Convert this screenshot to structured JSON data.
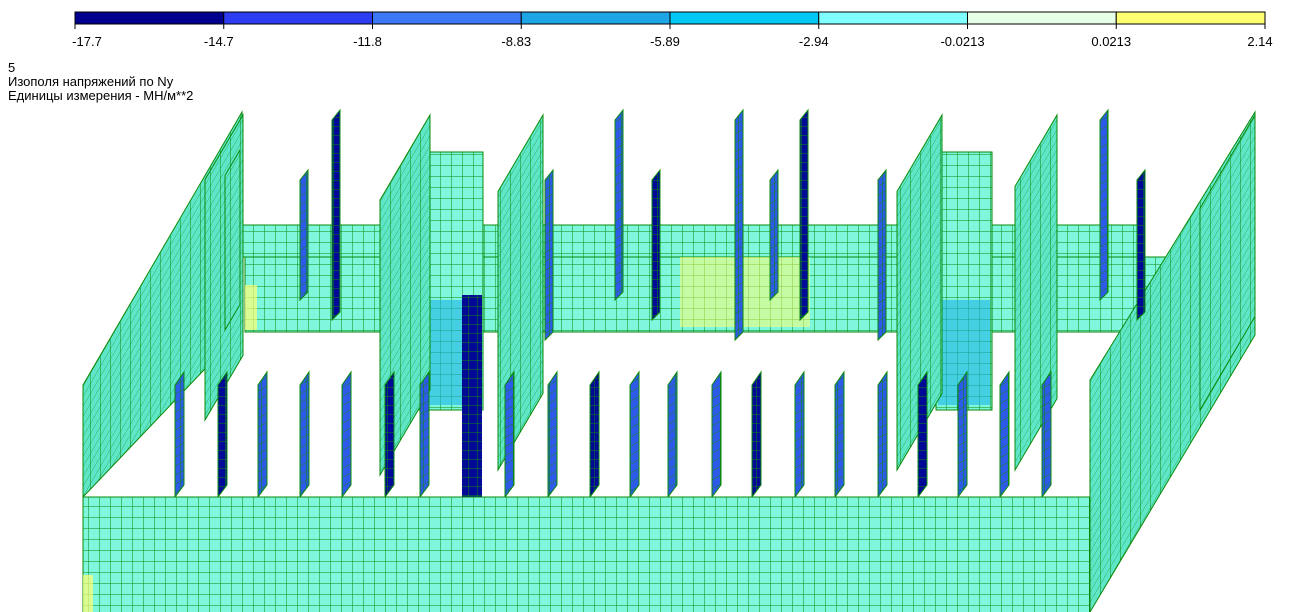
{
  "legend": {
    "ticks": [
      "-17.7",
      "-14.7",
      "-11.8",
      "-8.83",
      "-5.89",
      "-2.94",
      "-0.0213",
      "0.0213",
      "2.14"
    ],
    "colors": [
      "#00008c",
      "#2d3cf0",
      "#3c78f5",
      "#1ea5e6",
      "#00c8f5",
      "#80ffff",
      "#e6ffe6",
      "#ffff73"
    ]
  },
  "caption": {
    "number": "5",
    "title": "Изополя напряжений по Ny",
    "units": "Единицы измерения - МН/м**2"
  }
}
